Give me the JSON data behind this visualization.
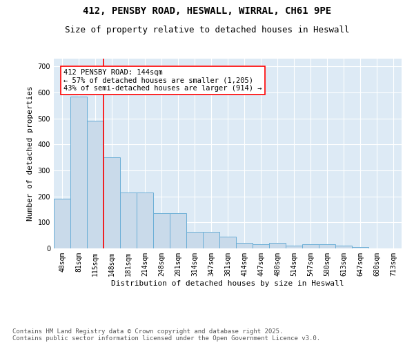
{
  "title_line1": "412, PENSBY ROAD, HESWALL, WIRRAL, CH61 9PE",
  "title_line2": "Size of property relative to detached houses in Heswall",
  "xlabel": "Distribution of detached houses by size in Heswall",
  "ylabel": "Number of detached properties",
  "categories": [
    "48sqm",
    "81sqm",
    "115sqm",
    "148sqm",
    "181sqm",
    "214sqm",
    "248sqm",
    "281sqm",
    "314sqm",
    "347sqm",
    "381sqm",
    "414sqm",
    "447sqm",
    "480sqm",
    "514sqm",
    "547sqm",
    "580sqm",
    "613sqm",
    "647sqm",
    "680sqm",
    "713sqm"
  ],
  "values": [
    190,
    585,
    490,
    350,
    215,
    215,
    135,
    135,
    65,
    65,
    45,
    20,
    15,
    20,
    10,
    15,
    15,
    10,
    5,
    0,
    0
  ],
  "bar_color": "#c9daea",
  "bar_edge_color": "#6aaed6",
  "background_color": "#ddeaf5",
  "red_line_index": 2,
  "annotation_text": "412 PENSBY ROAD: 144sqm\n← 57% of detached houses are smaller (1,205)\n43% of semi-detached houses are larger (914) →",
  "ylim": [
    0,
    730
  ],
  "yticks": [
    0,
    100,
    200,
    300,
    400,
    500,
    600,
    700
  ],
  "footer_text": "Contains HM Land Registry data © Crown copyright and database right 2025.\nContains public sector information licensed under the Open Government Licence v3.0.",
  "title_fontsize": 10,
  "subtitle_fontsize": 9,
  "axis_label_fontsize": 8,
  "tick_fontsize": 7,
  "footer_fontsize": 6.5,
  "annot_fontsize": 7.5
}
